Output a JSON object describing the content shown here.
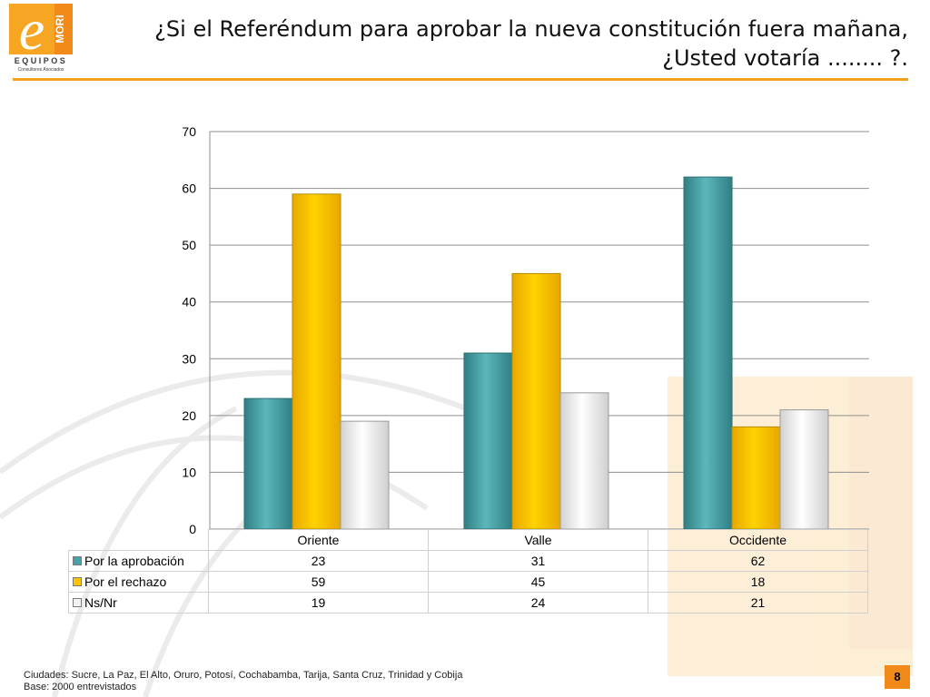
{
  "logo": {
    "brand": "EQUIPOS",
    "sub": "Consultores Asociados",
    "mark": "MORI"
  },
  "title": {
    "line1": "¿Si el Referéndum para aprobar la nueva constitución fuera mañana,",
    "line2": "¿Usted votaría ........ ?."
  },
  "colors": {
    "accent": "#f4a21e",
    "aprobacion": "#4aa3a8",
    "rechazo": "#ffc400",
    "nsnr": "#f2f2f2"
  },
  "chart_data": {
    "type": "bar",
    "categories": [
      "Oriente",
      "Valle",
      "Occidente"
    ],
    "series": [
      {
        "name": "Por la aprobación",
        "values": [
          23,
          31,
          62
        ],
        "color": "#4aa3a8"
      },
      {
        "name": "Por el rechazo",
        "values": [
          59,
          45,
          18
        ],
        "color": "#ffc400"
      },
      {
        "name": "Ns/Nr",
        "values": [
          19,
          24,
          21
        ],
        "color": "#f2f2f2"
      }
    ],
    "ylim": [
      0,
      70
    ],
    "yticks": [
      0,
      10,
      20,
      30,
      40,
      50,
      60,
      70
    ],
    "grid": true,
    "legend": "data-table"
  },
  "footer": {
    "cities": "Ciudades: Sucre, La Paz, El Alto, Oruro, Potosí, Cochabamba, Tarija, Santa Cruz, Trinidad y Cobija",
    "base": "Base: 2000 entrevistados"
  },
  "page_number": "8"
}
